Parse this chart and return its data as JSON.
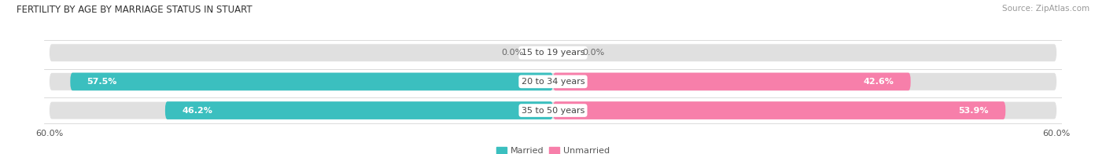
{
  "title": "FERTILITY BY AGE BY MARRIAGE STATUS IN STUART",
  "source": "Source: ZipAtlas.com",
  "categories": [
    "15 to 19 years",
    "20 to 34 years",
    "35 to 50 years"
  ],
  "married_values": [
    0.0,
    57.5,
    46.2
  ],
  "unmarried_values": [
    0.0,
    42.6,
    53.9
  ],
  "married_color": "#3bbfbf",
  "unmarried_color": "#f77faa",
  "bar_bg_color": "#e0e0e0",
  "axis_max": 60.0,
  "label_married": "Married",
  "label_unmarried": "Unmarried",
  "x_tick_left": "60.0%",
  "x_tick_right": "60.0%",
  "title_fontsize": 8.5,
  "source_fontsize": 7.5,
  "bar_label_fontsize": 8,
  "category_fontsize": 8,
  "legend_fontsize": 8,
  "tick_fontsize": 8
}
